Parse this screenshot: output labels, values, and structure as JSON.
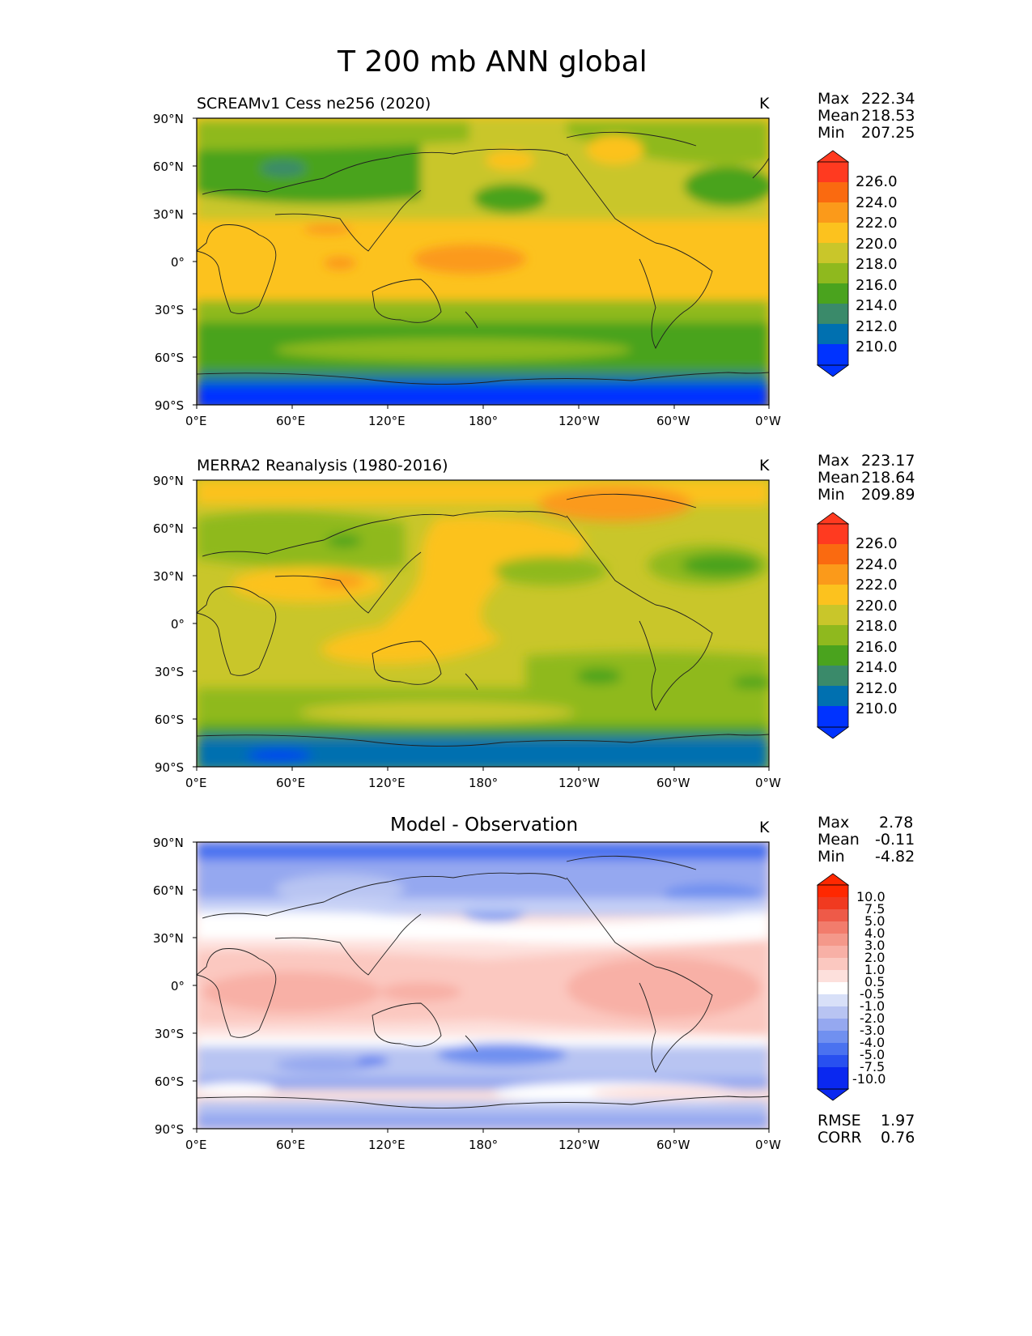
{
  "title": "T 200 mb ANN global",
  "units": "K",
  "lat_ticks": [
    "90°N",
    "60°N",
    "30°N",
    "0°",
    "30°S",
    "60°S",
    "90°S"
  ],
  "lon_ticks": [
    "0°E",
    "60°E",
    "120°E",
    "180°",
    "120°W",
    "60°W",
    "0°W"
  ],
  "colors": {
    "abs": [
      "#0033ff",
      "#0070b0",
      "#3a8a6a",
      "#4aa31e",
      "#8fb91e",
      "#c9c62a",
      "#fcc21e",
      "#fb9a1a",
      "#fa6a10",
      "#ff3a20"
    ],
    "diff": [
      "#0a28f0",
      "#2850f0",
      "#4a72f0",
      "#7090f0",
      "#95a8f0",
      "#b8c4f2",
      "#d8e0f8",
      "#ffffff",
      "#fde0dc",
      "#fbc8c0",
      "#f8b0a6",
      "#f4988a",
      "#f27c6c",
      "#ee5a48",
      "#f03a20",
      "#ff2800"
    ]
  },
  "panels": [
    {
      "id": "test",
      "title": "SCREAMv1 Cess ne256 (2020)",
      "units": "K",
      "stats": {
        "max_label": "Max",
        "max": "222.34",
        "mean_label": "Mean",
        "mean": "218.53",
        "min_label": "Min",
        "min": "207.25"
      },
      "colorbar_labels": [
        "226.0",
        "224.0",
        "222.0",
        "220.0",
        "218.0",
        "216.0",
        "214.0",
        "212.0",
        "210.0"
      ]
    },
    {
      "id": "ref",
      "title": "MERRA2 Reanalysis (1980-2016)",
      "units": "K",
      "stats": {
        "max_label": "Max",
        "max": "223.17",
        "mean_label": "Mean",
        "mean": "218.64",
        "min_label": "Min",
        "min": "209.89"
      },
      "colorbar_labels": [
        "226.0",
        "224.0",
        "222.0",
        "220.0",
        "218.0",
        "216.0",
        "214.0",
        "212.0",
        "210.0"
      ]
    },
    {
      "id": "diff",
      "title": "Model - Observation",
      "units": "K",
      "stats": {
        "max_label": "Max",
        "max": "2.78",
        "mean_label": "Mean",
        "mean": "-0.11",
        "min_label": "Min",
        "min": "-4.82"
      },
      "colorbar_labels": [
        "10.0",
        "7.5",
        "5.0",
        "4.0",
        "3.0",
        "2.0",
        "1.0",
        "0.5",
        "-0.5",
        "-1.0",
        "-2.0",
        "-3.0",
        "-4.0",
        "-5.0",
        "-7.5",
        "-10.0"
      ],
      "extra": {
        "rmse_label": "RMSE",
        "rmse": "1.97",
        "corr_label": "CORR",
        "corr": "0.76"
      }
    }
  ]
}
